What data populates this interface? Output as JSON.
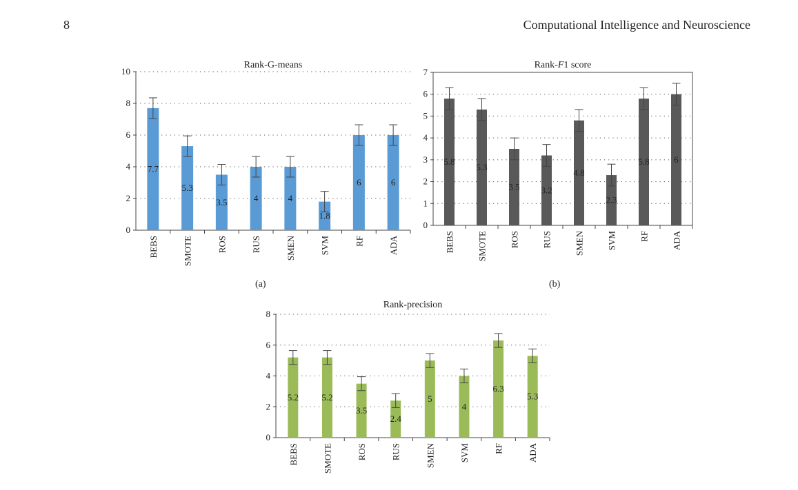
{
  "header": {
    "page_number": "8",
    "journal_title": "Computational Intelligence and Neuroscience"
  },
  "panels": [
    {
      "label": "(a)"
    },
    {
      "label": "(b)"
    },
    {
      "label": ""
    }
  ],
  "chart_data": [
    {
      "type": "bar",
      "title_parts": [
        {
          "text": "Rank-G-means",
          "italic": false
        }
      ],
      "categories": [
        "BEBS",
        "SMOTE",
        "ROS",
        "RUS",
        "SMEN",
        "SVM",
        "RF",
        "ADA"
      ],
      "values": [
        7.7,
        5.3,
        3.5,
        4,
        4,
        1.8,
        6,
        6
      ],
      "value_labels": [
        "7.7",
        "5.3",
        "3.5",
        "4",
        "4",
        "1.8",
        "6",
        "6"
      ],
      "error": [
        0.65,
        0.65,
        0.65,
        0.65,
        0.65,
        0.65,
        0.65,
        0.65
      ],
      "ylim": [
        0,
        10
      ],
      "yticks": [
        0,
        2,
        4,
        6,
        8,
        10
      ],
      "ytick_labels": [
        "0",
        "2",
        "4",
        "6",
        "8",
        "10"
      ],
      "xlabel": "",
      "ylabel": "",
      "grid": "horizontal-dotted",
      "frame": false,
      "color": "#5b9bd5"
    },
    {
      "type": "bar",
      "title_parts": [
        {
          "text": "Rank-",
          "italic": false
        },
        {
          "text": "F",
          "italic": true
        },
        {
          "text": "1 score",
          "italic": false
        }
      ],
      "categories": [
        "BEBS",
        "SMOTE",
        "ROS",
        "RUS",
        "SMEN",
        "SVM",
        "RF",
        "ADA"
      ],
      "values": [
        5.8,
        5.3,
        3.5,
        3.2,
        4.8,
        2.3,
        5.8,
        6
      ],
      "value_labels": [
        "5.8",
        "5.3",
        "3.5",
        "3.2",
        "4.8",
        "2.3",
        "5.8",
        "6"
      ],
      "error": [
        0.5,
        0.5,
        0.5,
        0.5,
        0.5,
        0.5,
        0.5,
        0.5
      ],
      "ylim": [
        0,
        7
      ],
      "yticks": [
        0,
        1,
        2,
        3,
        4,
        5,
        6,
        7
      ],
      "ytick_labels": [
        "0",
        "1",
        "2",
        "3",
        "4",
        "5",
        "6",
        "7"
      ],
      "xlabel": "",
      "ylabel": "",
      "grid": "horizontal-dotted",
      "frame": true,
      "color": "#595959"
    },
    {
      "type": "bar",
      "title_parts": [
        {
          "text": "Rank-precision",
          "italic": false
        }
      ],
      "categories": [
        "BEBS",
        "SMOTE",
        "ROS",
        "RUS",
        "SMEN",
        "SVM",
        "RF",
        "ADA"
      ],
      "values": [
        5.2,
        5.2,
        3.5,
        2.4,
        5,
        4,
        6.3,
        5.3
      ],
      "value_labels": [
        "5.2",
        "5.2",
        "3.5",
        "2.4",
        "5",
        "4",
        "6.3",
        "5.3"
      ],
      "error": [
        0.45,
        0.45,
        0.45,
        0.45,
        0.45,
        0.45,
        0.45,
        0.45
      ],
      "ylim": [
        0,
        8
      ],
      "yticks": [
        0,
        2,
        4,
        6,
        8
      ],
      "ytick_labels": [
        "0",
        "2",
        "4",
        "6",
        "8"
      ],
      "xlabel": "",
      "ylabel": "",
      "grid": "horizontal-dotted",
      "frame": false,
      "color": "#9bbb59"
    }
  ]
}
